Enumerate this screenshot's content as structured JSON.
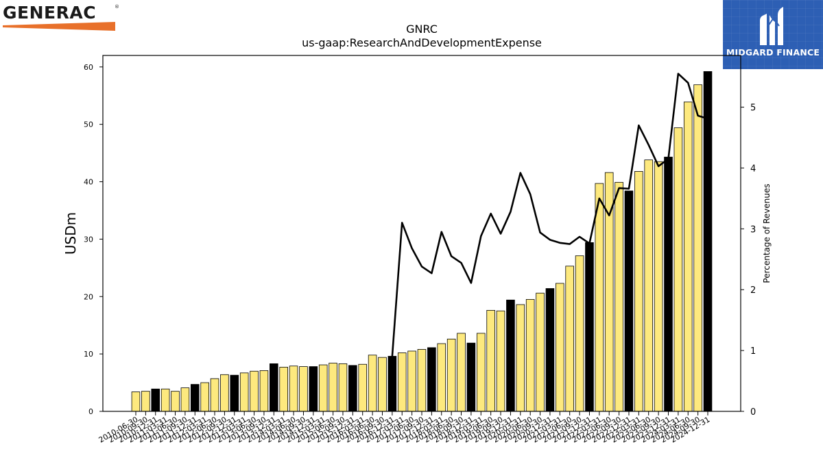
{
  "branding": {
    "left_logo_text": "GENERAC",
    "left_logo_mark": "®",
    "right_logo_text": "MIDGARD FINANCE",
    "colors": {
      "generac_orange": "#e8702a",
      "midgard_blue": "#2d5fb4"
    }
  },
  "chart_data": {
    "type": "bar",
    "title": "GNRC",
    "subtitle": "us-gaap:ResearchAndDevelopmentExpense",
    "ylabel": "USDm",
    "y2label": "Percentage of Revenues",
    "ylim": [
      0,
      62
    ],
    "y2lim": [
      0,
      5.85
    ],
    "yticks": [
      0,
      10,
      20,
      30,
      40,
      50,
      60
    ],
    "y2ticks": [
      0,
      1,
      2,
      3,
      4,
      5
    ],
    "grid": false,
    "legend": "none",
    "colors": {
      "quarter_bar": "#fde97e",
      "year_bar": "#000000",
      "line": "#000000"
    },
    "categories": [
      "2010-06-30",
      "2010-09-30",
      "2010-12-31",
      "2011-03-31",
      "2011-06-30",
      "2011-09-30",
      "2011-12-31",
      "2012-03-31",
      "2012-06-30",
      "2012-09-30",
      "2012-12-31",
      "2013-03-31",
      "2013-06-30",
      "2013-09-30",
      "2013-12-31",
      "2014-03-31",
      "2014-06-30",
      "2014-09-30",
      "2014-12-31",
      "2015-03-31",
      "2015-06-30",
      "2015-09-30",
      "2015-12-31",
      "2016-03-31",
      "2016-06-30",
      "2016-09-30",
      "2016-12-31",
      "2017-03-31",
      "2017-06-30",
      "2017-09-30",
      "2017-12-31",
      "2018-03-31",
      "2018-06-30",
      "2018-09-30",
      "2018-12-31",
      "2019-03-31",
      "2019-06-30",
      "2019-09-30",
      "2019-12-31",
      "2020-03-31",
      "2020-06-30",
      "2020-09-30",
      "2020-12-31",
      "2021-03-31",
      "2021-06-30",
      "2021-09-30",
      "2021-12-31",
      "2022-03-31",
      "2022-06-30",
      "2022-09-30",
      "2022-12-31",
      "2023-03-31",
      "2023-06-30",
      "2023-09-30",
      "2023-12-31",
      "2024-03-31",
      "2024-06-30",
      "2024-09-30",
      "2024-12-31"
    ],
    "series": [
      {
        "kind": "bar",
        "axis": "left",
        "values": [
          3.4,
          3.5,
          3.9,
          3.9,
          3.5,
          4.1,
          4.7,
          5.0,
          5.7,
          6.4,
          6.3,
          6.7,
          7.0,
          7.1,
          8.3,
          7.7,
          7.9,
          7.8,
          7.8,
          8.1,
          8.4,
          8.3,
          8.0,
          8.2,
          9.8,
          9.4,
          9.6,
          10.2,
          10.5,
          10.8,
          11.1,
          11.8,
          12.6,
          13.6,
          11.9,
          13.6,
          17.6,
          17.5,
          19.4,
          18.6,
          19.5,
          20.6,
          21.4,
          22.3,
          25.3,
          27.1,
          29.4,
          39.7,
          41.6,
          39.9,
          38.4,
          41.8,
          43.8,
          43.5,
          44.3,
          49.4,
          53.9,
          56.9,
          59.2
        ],
        "is_year_end": [
          false,
          false,
          true,
          false,
          false,
          false,
          true,
          false,
          false,
          false,
          true,
          false,
          false,
          false,
          true,
          false,
          false,
          false,
          true,
          false,
          false,
          false,
          true,
          false,
          false,
          false,
          true,
          false,
          false,
          false,
          true,
          false,
          false,
          false,
          true,
          false,
          false,
          false,
          true,
          false,
          false,
          false,
          true,
          false,
          false,
          false,
          true,
          false,
          false,
          false,
          true,
          false,
          false,
          false,
          true,
          false,
          false,
          false,
          true
        ]
      },
      {
        "kind": "line",
        "axis": "right",
        "values": [
          null,
          null,
          null,
          null,
          null,
          null,
          null,
          null,
          null,
          null,
          null,
          null,
          null,
          null,
          null,
          null,
          null,
          null,
          null,
          null,
          null,
          null,
          null,
          null,
          null,
          null,
          0.9,
          3.1,
          2.68,
          2.38,
          2.27,
          2.95,
          2.55,
          2.44,
          2.11,
          2.88,
          3.25,
          2.92,
          3.28,
          3.92,
          3.57,
          2.94,
          2.82,
          2.77,
          2.75,
          2.87,
          2.76,
          3.5,
          3.22,
          3.67,
          3.66,
          4.7,
          4.38,
          4.03,
          4.15,
          5.55,
          5.4,
          4.86,
          4.81
        ]
      }
    ]
  }
}
